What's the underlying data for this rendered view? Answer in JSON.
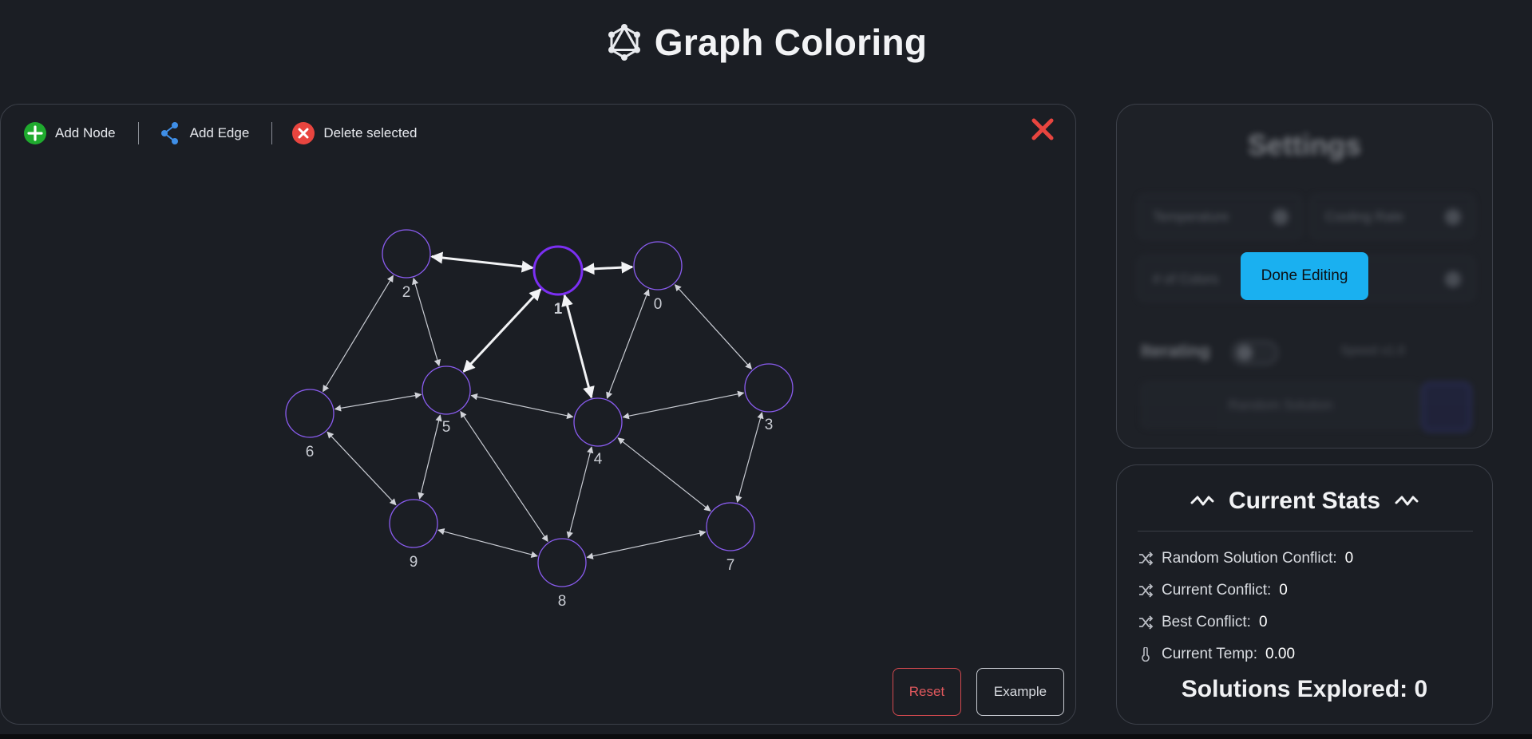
{
  "app": {
    "title": "Graph Coloring",
    "logo_icon": "graphql-logo-icon"
  },
  "toolbar": {
    "add_node": "Add Node",
    "add_edge": "Add Edge",
    "delete_selected": "Delete selected"
  },
  "graph": {
    "selected_node": "1",
    "node_stroke_color": "#8a5cf0",
    "selected_stroke_color": "#7b2ff2",
    "nodes": [
      {
        "id": "0"
      },
      {
        "id": "1"
      },
      {
        "id": "2"
      },
      {
        "id": "3"
      },
      {
        "id": "4"
      },
      {
        "id": "5"
      },
      {
        "id": "6"
      },
      {
        "id": "7"
      },
      {
        "id": "8"
      },
      {
        "id": "9"
      }
    ],
    "edges": [
      [
        "2",
        "1"
      ],
      [
        "1",
        "0"
      ],
      [
        "1",
        "5"
      ],
      [
        "1",
        "4"
      ],
      [
        "2",
        "5"
      ],
      [
        "2",
        "6"
      ],
      [
        "0",
        "4"
      ],
      [
        "0",
        "3"
      ],
      [
        "5",
        "6"
      ],
      [
        "5",
        "4"
      ],
      [
        "5",
        "9"
      ],
      [
        "5",
        "8"
      ],
      [
        "4",
        "3"
      ],
      [
        "4",
        "8"
      ],
      [
        "4",
        "7"
      ],
      [
        "6",
        "9"
      ],
      [
        "9",
        "8"
      ],
      [
        "8",
        "7"
      ],
      [
        "3",
        "7"
      ]
    ],
    "highlighted_edges": [
      [
        "2",
        "1"
      ],
      [
        "1",
        "0"
      ],
      [
        "1",
        "5"
      ],
      [
        "1",
        "4"
      ]
    ]
  },
  "actions": {
    "reset": "Reset",
    "example": "Example"
  },
  "settings": {
    "title": "Settings",
    "temperature": "Temperature",
    "cooling_rate": "Cooling Rate",
    "num_colors": "# of Colors",
    "iterating": "Iterating",
    "speed": "Speed x1.0",
    "random_solution": "Random Solution",
    "done_editing": "Done Editing"
  },
  "stats": {
    "title": "Current Stats",
    "items": [
      {
        "label": "Random Solution Conflict:",
        "value": "0",
        "icon": "shuffle-icon"
      },
      {
        "label": "Current Conflict:",
        "value": "0",
        "icon": "shuffle-icon"
      },
      {
        "label": "Best Conflict:",
        "value": "0",
        "icon": "shuffle-icon"
      },
      {
        "label": "Current Temp:",
        "value": "0.00",
        "icon": "thermometer-icon"
      }
    ],
    "explored_label": "Solutions Explored:",
    "explored_value": "0"
  },
  "colors": {
    "background": "#1b1e24",
    "accent": "#1ab0f0",
    "danger": "#e0585d",
    "add": "#1faa2e",
    "edge_icon": "#3f8fe8"
  }
}
